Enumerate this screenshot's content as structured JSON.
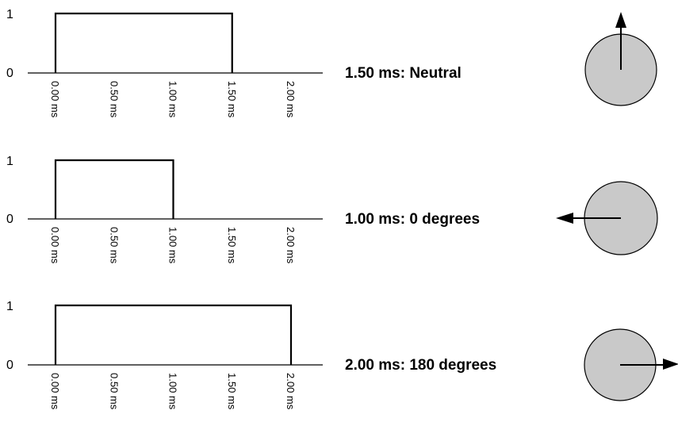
{
  "y_axis_labels": {
    "high": "1",
    "low": "0"
  },
  "tick_labels": [
    "0.00 ms",
    "0.50 ms",
    "1.00 ms",
    "1.50 ms",
    "2.00 ms"
  ],
  "tick_values_ms": [
    0.0,
    0.5,
    1.0,
    1.5,
    2.0
  ],
  "colors": {
    "dial_fill": "#c9c9c9",
    "line": "#000000"
  },
  "rows": [
    {
      "caption": "1.50 ms: Neutral",
      "pulse_width_ms": 1.5,
      "pointer_direction": "up"
    },
    {
      "caption": "1.00 ms: 0 degrees",
      "pulse_width_ms": 1.0,
      "pointer_direction": "left"
    },
    {
      "caption": "2.00 ms: 180 degrees",
      "pulse_width_ms": 2.0,
      "pointer_direction": "right"
    }
  ]
}
